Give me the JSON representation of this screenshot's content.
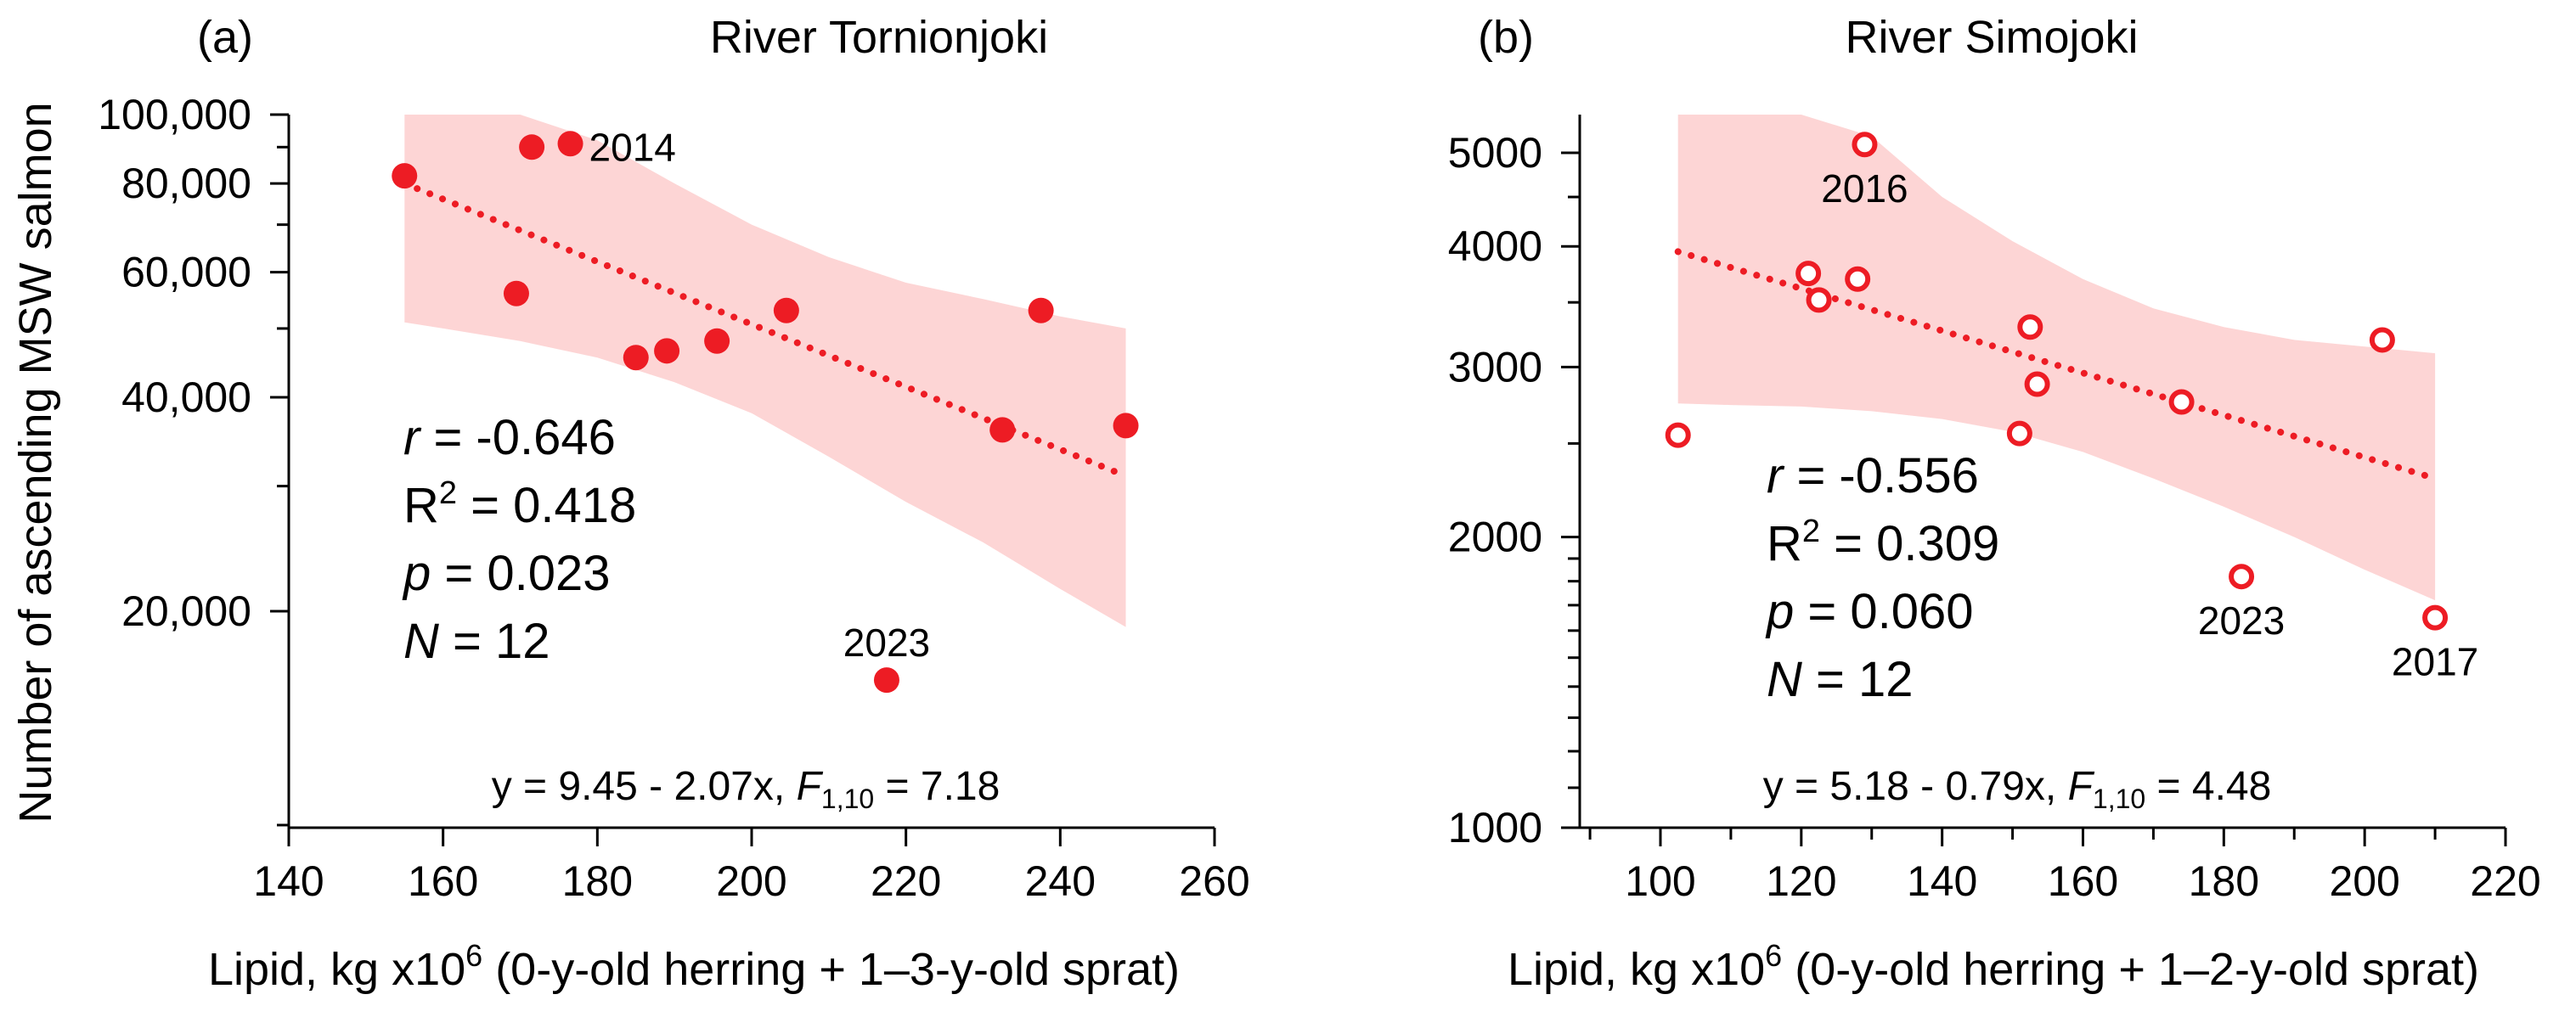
{
  "colors": {
    "marker": "#ed1c24",
    "band": "#fdd5d5",
    "axis": "#000000"
  },
  "y_axis_title": "Number of ascending MSW salmon",
  "chart_data": [
    {
      "type": "scatter",
      "panel_label": "(a)",
      "title": "River Tornionjoki",
      "xlabel_pre": "Lipid, kg x10",
      "xlabel_sup": "6",
      "xlabel_post": " (0-y-old herring + 1–3-y-old sprat)",
      "ylabel": "Number of ascending MSW salmon",
      "xlim": [
        140,
        260
      ],
      "ylim": [
        10000,
        100000
      ],
      "yscale": "log",
      "marker": "filled",
      "x_ticks": [
        140,
        160,
        180,
        200,
        220,
        240,
        260
      ],
      "x_tick_labels": [
        "140",
        "160",
        "180",
        "200",
        "220",
        "240",
        "260"
      ],
      "y_major_ticks": [
        20000,
        40000,
        60000,
        80000,
        100000
      ],
      "y_tick_labels": [
        "20,000",
        "40,000",
        "60,000",
        "80,000",
        "100,000"
      ],
      "y_minor_ticks": [
        10000,
        30000,
        50000,
        70000,
        90000
      ],
      "points": [
        {
          "x": 155,
          "y": 82000
        },
        {
          "x": 169.5,
          "y": 56000
        },
        {
          "x": 171.5,
          "y": 90000
        },
        {
          "x": 176.5,
          "y": 91000
        },
        {
          "x": 185,
          "y": 45500
        },
        {
          "x": 189,
          "y": 46500
        },
        {
          "x": 195.5,
          "y": 48000
        },
        {
          "x": 204.5,
          "y": 53000
        },
        {
          "x": 217.5,
          "y": 16000
        },
        {
          "x": 232.5,
          "y": 36000
        },
        {
          "x": 237.5,
          "y": 53000
        },
        {
          "x": 248.5,
          "y": 36500
        }
      ],
      "annotations": [
        {
          "text": "2014",
          "x": 176.5,
          "y": 91000
        },
        {
          "text": "2023",
          "x": 217.5,
          "y": 16000
        }
      ],
      "fit_line": {
        "x": [
          155,
          248.5
        ],
        "y": [
          80000,
          31000
        ],
        "style": "dotted"
      },
      "confidence_band": {
        "x": [
          155,
          160,
          170,
          180,
          190,
          200,
          210,
          220,
          230,
          240,
          248.5
        ],
        "upper": [
          100000,
          100000,
          100000,
          92000,
          80000,
          70000,
          63000,
          58000,
          55000,
          52000,
          50000
        ],
        "lower": [
          51000,
          50000,
          48000,
          45500,
          42000,
          38000,
          33000,
          28500,
          25000,
          21500,
          19000
        ]
      },
      "stats": {
        "r_label": "r",
        "r_value": " = -0.646",
        "R2_label": "R",
        "R2_sup": "2",
        "R2_value": " = 0.418",
        "p_label": "p",
        "p_value": " = 0.023",
        "N_label": "N",
        "N_value": " = 12"
      },
      "equation": {
        "pre": "y = 9.45 - 2.07x, ",
        "F": "F",
        "F_sub": "1,10",
        "post": " = 7.18"
      }
    },
    {
      "type": "scatter",
      "panel_label": "(b)",
      "title": "River Simojoki",
      "xlabel_pre": "Lipid, kg x10",
      "xlabel_sup": "6",
      "xlabel_post": " (0-y-old herring + 1–2-y-old sprat)",
      "ylabel": "",
      "xlim": [
        90,
        220
      ],
      "ylim": [
        1000,
        5800
      ],
      "yscale": "log",
      "marker": "open",
      "x_ticks": [
        100,
        120,
        140,
        160,
        180,
        200,
        220
      ],
      "x_tick_labels": [
        "100",
        "120",
        "140",
        "160",
        "180",
        "200",
        "220"
      ],
      "x_minor_ticks": [
        90,
        110,
        130,
        150,
        170,
        190,
        210
      ],
      "y_major_ticks": [
        1000,
        2000,
        3000,
        4000,
        5000
      ],
      "y_tick_labels": [
        "1000",
        "2000",
        "3000",
        "4000",
        "5000"
      ],
      "y_minor_ticks": [
        1100,
        1200,
        1300,
        1400,
        1500,
        1600,
        1700,
        1800,
        1900,
        2500,
        3500,
        4500,
        5500
      ],
      "points": [
        {
          "x": 102.5,
          "y": 2550
        },
        {
          "x": 121,
          "y": 3750
        },
        {
          "x": 122.5,
          "y": 3520
        },
        {
          "x": 128,
          "y": 3700
        },
        {
          "x": 129,
          "y": 5100
        },
        {
          "x": 151,
          "y": 2560
        },
        {
          "x": 152.5,
          "y": 3300
        },
        {
          "x": 153.5,
          "y": 2880
        },
        {
          "x": 174,
          "y": 2760
        },
        {
          "x": 182.5,
          "y": 1820
        },
        {
          "x": 202.5,
          "y": 3200
        },
        {
          "x": 210,
          "y": 1650
        }
      ],
      "annotations": [
        {
          "text": "2016",
          "x": 129,
          "y": 5100
        },
        {
          "text": "2023",
          "x": 182.5,
          "y": 1820
        },
        {
          "text": "2017",
          "x": 210,
          "y": 1650
        }
      ],
      "fit_line": {
        "x": [
          102.5,
          210
        ],
        "y": [
          3950,
          2300
        ],
        "style": "dotted"
      },
      "confidence_band": {
        "x": [
          102.5,
          110,
          120,
          130,
          140,
          150,
          160,
          170,
          180,
          190,
          200,
          210
        ],
        "upper": [
          5800,
          5800,
          5800,
          5200,
          4500,
          4050,
          3700,
          3450,
          3300,
          3200,
          3150,
          3100
        ],
        "lower": [
          2750,
          2740,
          2730,
          2700,
          2650,
          2570,
          2450,
          2300,
          2150,
          2000,
          1850,
          1720
        ]
      },
      "stats": {
        "r_label": "r",
        "r_value": " = -0.556",
        "R2_label": "R",
        "R2_sup": "2",
        "R2_value": " = 0.309",
        "p_label": "p",
        "p_value": " = 0.060",
        "N_label": "N",
        "N_value": " = 12"
      },
      "equation": {
        "pre": "y = 5.18 - 0.79x, ",
        "F": "F",
        "F_sub": "1,10",
        "post": " = 4.48"
      }
    }
  ]
}
